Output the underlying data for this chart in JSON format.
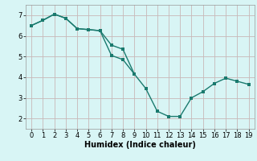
{
  "xlabel": "Humidex (Indice chaleur)",
  "background_color": "#d8f5f5",
  "grid_color": "#c8b8b8",
  "line_color": "#1a7a6e",
  "line1_x": [
    0,
    1,
    2,
    3,
    4,
    5,
    6,
    7,
    8,
    9,
    10,
    11,
    12,
    13,
    14,
    15,
    16,
    17,
    18,
    19
  ],
  "line1_y": [
    6.5,
    6.75,
    7.05,
    6.85,
    6.35,
    6.3,
    6.25,
    5.05,
    4.85,
    4.15,
    3.45,
    2.35,
    2.1,
    2.1,
    3.0,
    3.3,
    3.7,
    3.95,
    3.8,
    3.65
  ],
  "line2_x": [
    0,
    1,
    2,
    3,
    4,
    5,
    6,
    7,
    8,
    9,
    10,
    11,
    12,
    13,
    14,
    15,
    16,
    17,
    18,
    19
  ],
  "line2_y": [
    6.5,
    6.75,
    7.05,
    6.85,
    6.35,
    6.3,
    6.25,
    5.55,
    5.35,
    4.15,
    null,
    null,
    null,
    null,
    null,
    null,
    null,
    null,
    null,
    null
  ],
  "ylim": [
    1.5,
    7.5
  ],
  "xlim": [
    -0.5,
    19.5
  ],
  "yticks": [
    2,
    3,
    4,
    5,
    6,
    7
  ],
  "xticks": [
    0,
    1,
    2,
    3,
    4,
    5,
    6,
    7,
    8,
    9,
    10,
    11,
    12,
    13,
    14,
    15,
    16,
    17,
    18,
    19
  ],
  "xlabel_fontsize": 7,
  "tick_labelsize": 6,
  "linewidth": 1.0,
  "markersize": 2.5
}
